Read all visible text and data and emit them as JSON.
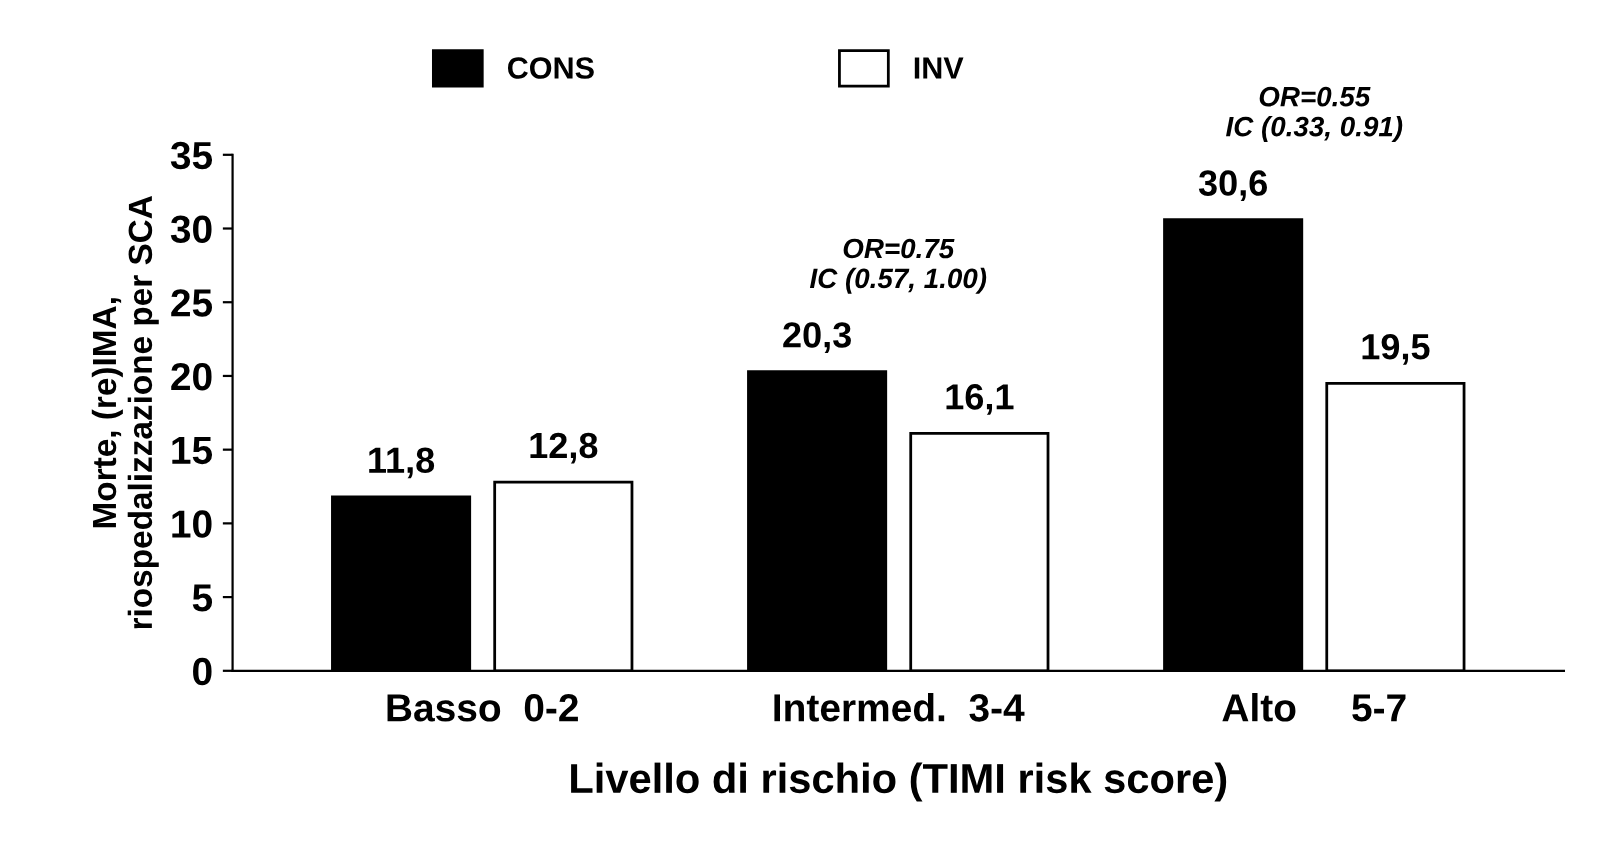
{
  "chart_data": {
    "type": "bar",
    "xlabel": "Livello di rischio (TIMI risk score)",
    "ylabel": "Morte, (re)IMA,\nriospedalizzazione per SCA",
    "categories": [
      "Basso  0-2",
      "Intermed.  3-4",
      "Alto     5-7"
    ],
    "series": [
      {
        "name": "CONS",
        "color": "#000000",
        "values": [
          11.8,
          20.3,
          30.6
        ],
        "value_labels": [
          "11,8",
          "20,3",
          "30,6"
        ]
      },
      {
        "name": "INV",
        "color": "#ffffff",
        "values": [
          12.8,
          16.1,
          19.5
        ],
        "value_labels": [
          "12,8",
          "16,1",
          "19,5"
        ]
      }
    ],
    "ylim": [
      0,
      35
    ],
    "yticks": [
      0,
      5,
      10,
      15,
      20,
      25,
      30,
      35
    ],
    "grid": false,
    "legend": "top",
    "annotations": [
      "OR=0.75\nIC (0.57, 1.00)",
      "OR=0.55\nIC (0.33, 0.91)"
    ]
  }
}
